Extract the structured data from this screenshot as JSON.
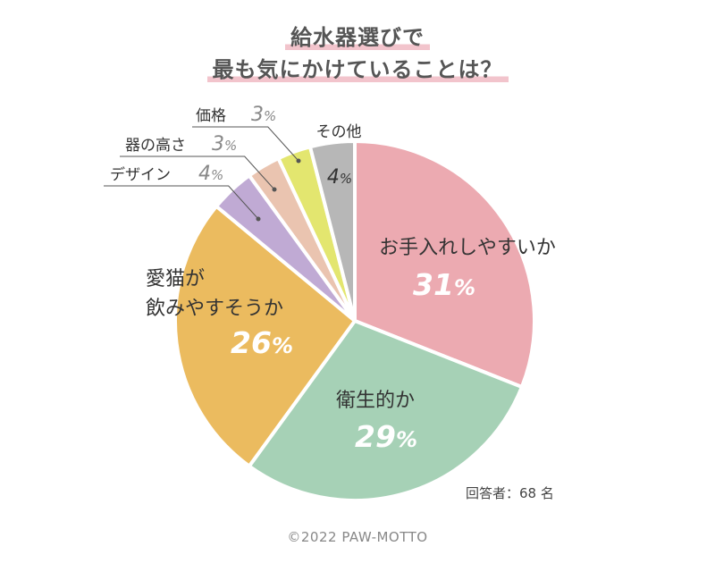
{
  "header": {
    "title_line1": "給水器選びで",
    "title_line2": "最も気にかけていることは？"
  },
  "respondents": "回答者：68 名",
  "footer": {
    "copyright": "©2022 PAW-MOTTO"
  },
  "chart_data": {
    "type": "pie",
    "title": "給水器選びで最も気にかけていることは？",
    "unit": "%",
    "slices": [
      {
        "label": "お手入れしやすいか",
        "value": 31,
        "color": "#ecaab1"
      },
      {
        "label": "衛生的か",
        "value": 29,
        "color": "#a6d1b6"
      },
      {
        "label": "愛猫が飲みやすそうか",
        "value": 26,
        "color": "#ebbb5f"
      },
      {
        "label": "デザイン",
        "value": 4,
        "color": "#c0aad4"
      },
      {
        "label": "器の高さ",
        "value": 3,
        "color": "#eac4b0"
      },
      {
        "label": "価格",
        "value": 3,
        "color": "#e3e66f"
      },
      {
        "label": "その他",
        "value": 4,
        "color": "#b7b7b7"
      }
    ]
  }
}
